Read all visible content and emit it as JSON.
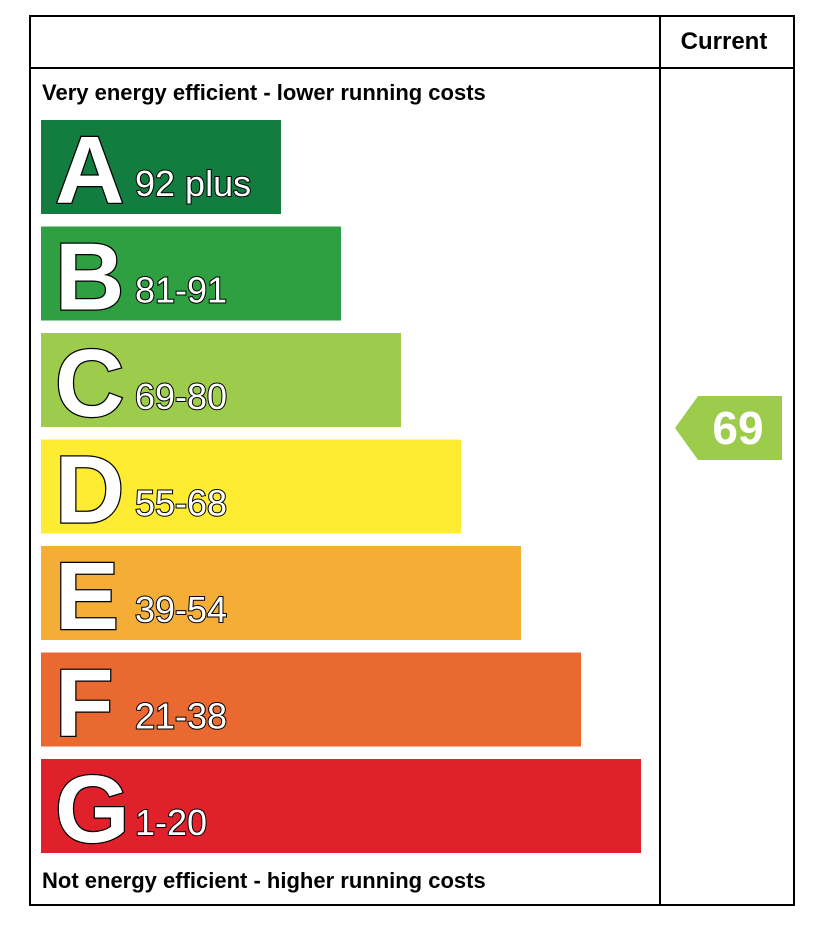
{
  "header": {
    "column": "Current"
  },
  "top_note": "Very energy efficient - lower running costs",
  "bottom_note": "Not energy efficient - higher running costs",
  "bands": [
    {
      "letter": "A",
      "range": "92 plus",
      "color": "#137c3f"
    },
    {
      "letter": "B",
      "range": "81-91",
      "color": "#2ea042"
    },
    {
      "letter": "C",
      "range": "69-80",
      "color": "#9dcb4b"
    },
    {
      "letter": "D",
      "range": "55-68",
      "color": "#fdec31"
    },
    {
      "letter": "E",
      "range": "39-54",
      "color": "#f5ae35"
    },
    {
      "letter": "F",
      "range": "21-38",
      "color": "#e96930"
    },
    {
      "letter": "G",
      "range": "1-20",
      "color": "#e0212b"
    }
  ],
  "current": {
    "value": 69,
    "color": "#9dcb4b"
  }
}
